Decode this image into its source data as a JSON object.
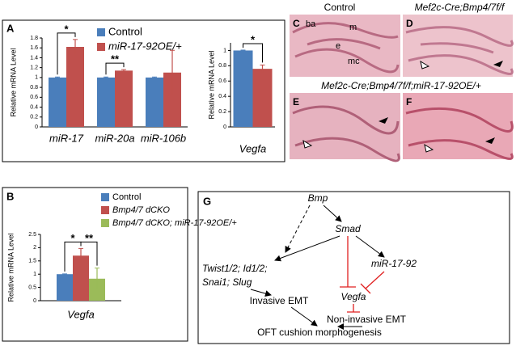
{
  "panel_labels": [
    "A",
    "B",
    "C",
    "D",
    "E",
    "F",
    "G"
  ],
  "chart_data": [
    {
      "type": "bar",
      "y_label": "Relative mRNA Level",
      "categories": [
        "miR-17",
        "miR-20a",
        "miR-106b"
      ],
      "series": [
        {
          "name": "Control",
          "color": "#4a7ebb",
          "values": [
            1,
            1,
            1
          ],
          "errors": [
            0.01,
            0.01,
            0.01
          ]
        },
        {
          "name": "miR-17-92OE/+",
          "color": "#c0504d",
          "values": [
            1.62,
            1.14,
            1.1
          ],
          "errors": [
            0.15,
            0.02,
            0.45
          ]
        }
      ],
      "ylim": [
        0,
        1.8
      ],
      "yticks": [
        0,
        0.2,
        0.4,
        0.6,
        0.8,
        1,
        1.2,
        1.4,
        1.6,
        1.8
      ],
      "annotations": [
        "*",
        "**"
      ],
      "legend": true
    },
    {
      "type": "bar",
      "y_label": "Relative mRNA Level",
      "categories": [
        "Vegfa"
      ],
      "series": [
        {
          "name": "Control",
          "color": "#4a7ebb",
          "values": [
            1
          ],
          "errors": [
            0.005
          ]
        },
        {
          "name": "miR-17-92OE/+",
          "color": "#c0504d",
          "values": [
            0.76
          ],
          "errors": [
            0.05
          ]
        }
      ],
      "ylim": [
        0,
        1.1
      ],
      "yticks": [
        0,
        0.2,
        0.4,
        0.6,
        0.8,
        1
      ],
      "annotations": [
        "*"
      ],
      "legend": false
    },
    {
      "type": "bar",
      "y_label": "Relative mRNA Level",
      "categories": [
        "Vegfa"
      ],
      "series": [
        {
          "name": "Control",
          "color": "#4a7ebb",
          "values": [
            1
          ],
          "errors": [
            0.01
          ]
        },
        {
          "name": "Bmp4/7 dCKO",
          "color": "#c0504d",
          "values": [
            1.7
          ],
          "errors": [
            0.27
          ]
        },
        {
          "name": "Bmp4/7 dCKO; miR-17-92OE/+",
          "color": "#9bbb59",
          "values": [
            0.83
          ],
          "errors": [
            0.4
          ]
        }
      ],
      "ylim": [
        0,
        2.5
      ],
      "yticks": [
        0,
        0.5,
        1,
        1.5,
        2,
        2.5
      ],
      "annotations": [
        "*",
        "**"
      ],
      "legend": true
    }
  ],
  "histology": {
    "control_title": "Control",
    "d_title": "Mef2c-Cre;Bmp4/7f/f",
    "ef_title": "Mef2c-Cre;Bmp4/7f/f;miR-17-92OE/+",
    "labels": [
      "ba",
      "m",
      "e",
      "mc"
    ]
  },
  "diagram": {
    "nodes": [
      "Bmp",
      "Smad",
      "Twist1/2; Id1/2;",
      "Snai1; Slug",
      "miR-17-92",
      "Invasive EMT",
      "Vegfa",
      "Non-invasive EMT",
      "OFT cushion morphogenesis"
    ]
  }
}
